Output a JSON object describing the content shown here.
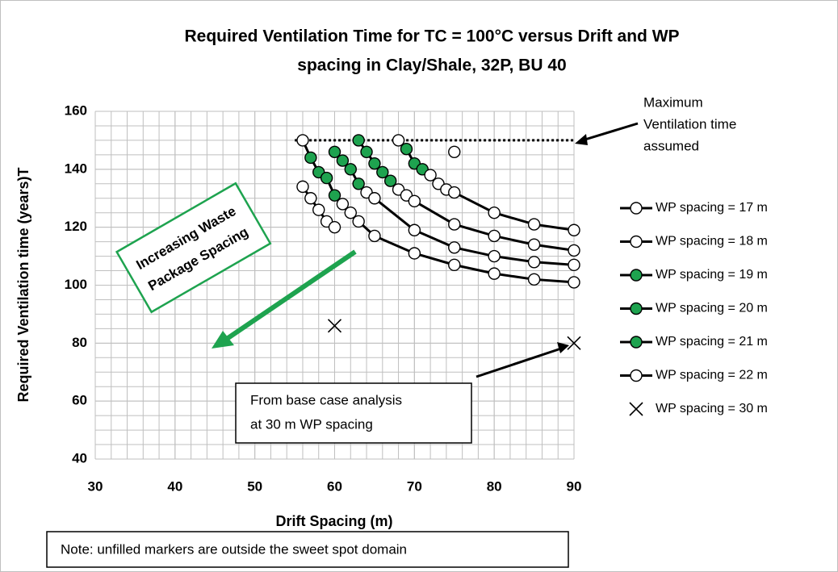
{
  "chart_data": {
    "type": "line",
    "title": [
      "Required Ventilation Time for TC = 100°C versus Drift and WP",
      "spacing in Clay/Shale, 32P, BU 40"
    ],
    "x_label": "Drift Spacing (m)",
    "y_label": "Required Ventilation time (years)T",
    "xlim": [
      30,
      90
    ],
    "xticks": [
      30,
      40,
      50,
      60,
      70,
      80,
      90
    ],
    "ylim": [
      40,
      160
    ],
    "yticks": [
      40,
      60,
      80,
      100,
      120,
      140,
      160
    ],
    "grid": true,
    "minor_grid": {
      "x": 2,
      "y": 5
    },
    "legend": "right",
    "max_line": 150,
    "annotations": {
      "max_label": [
        "Maximum",
        "Ventilation time",
        "assumed"
      ],
      "increasing": [
        "Increasing  Waste",
        "Package Spacing"
      ],
      "base_case": [
        "From base case analysis",
        "at 30 m WP spacing"
      ],
      "note": "Note: unfilled markers are outside the sweet spot domain"
    },
    "fill_color": "#1ea34f",
    "series": [
      {
        "name": "WP spacing = 17 m",
        "marker": "circle",
        "line": true,
        "legend_filled": false,
        "x": [
          68,
          69,
          70,
          71,
          72,
          73,
          74,
          75,
          80,
          85,
          90
        ],
        "values": [
          150,
          147,
          142,
          140,
          138,
          135,
          133,
          132,
          125,
          121,
          119
        ],
        "filled": [
          false,
          true,
          true,
          true,
          false,
          false,
          false,
          false,
          false,
          false,
          false
        ]
      },
      {
        "name": "WP spacing = 18 m",
        "marker": "circle",
        "line": true,
        "legend_filled": false,
        "x": [
          63,
          64,
          65,
          66,
          67,
          68,
          69,
          70,
          75,
          80,
          85,
          90
        ],
        "values": [
          150,
          146,
          142,
          139,
          136,
          133,
          131,
          129,
          121,
          117,
          114,
          112
        ],
        "filled": [
          true,
          true,
          true,
          true,
          true,
          false,
          false,
          false,
          false,
          false,
          false,
          false
        ]
      },
      {
        "name": "WP spacing = 19 m",
        "marker": "circle",
        "line": true,
        "legend_filled": true,
        "x": [
          60,
          61,
          62,
          63,
          64,
          65,
          70,
          75,
          80,
          85,
          90
        ],
        "values": [
          146,
          143,
          140,
          135,
          132,
          130,
          119,
          113,
          110,
          108,
          107
        ],
        "filled": [
          true,
          true,
          true,
          true,
          false,
          false,
          false,
          false,
          false,
          false,
          false
        ]
      },
      {
        "name": "WP spacing = 20 m",
        "marker": "circle",
        "line": true,
        "legend_filled": true,
        "x": [
          56,
          57,
          58,
          59,
          60,
          61,
          62,
          63,
          65,
          70,
          75,
          80,
          85,
          90
        ],
        "values": [
          150,
          144,
          139,
          137,
          131,
          128,
          125,
          122,
          117,
          111,
          107,
          104,
          102,
          101
        ],
        "filled": [
          false,
          true,
          true,
          true,
          true,
          false,
          false,
          false,
          false,
          false,
          false,
          false,
          false,
          false
        ]
      },
      {
        "name": "WP spacing = 21 m",
        "marker": "circle",
        "line": true,
        "legend_filled": true,
        "x": [
          56,
          57,
          58,
          59,
          60
        ],
        "values": [
          134,
          130,
          126,
          122,
          120
        ],
        "filled": [
          false,
          false,
          false,
          false,
          false
        ]
      },
      {
        "name": "WP spacing = 22 m",
        "marker": "circle",
        "line": true,
        "legend_filled": false,
        "x": [
          75
        ],
        "values": [
          146
        ],
        "filled": [
          false
        ]
      },
      {
        "name": "WP spacing = 30 m",
        "marker": "x",
        "line": false,
        "legend_filled": false,
        "x": [
          60,
          90
        ],
        "values": [
          86,
          80
        ],
        "filled": [
          false,
          false
        ]
      }
    ]
  }
}
